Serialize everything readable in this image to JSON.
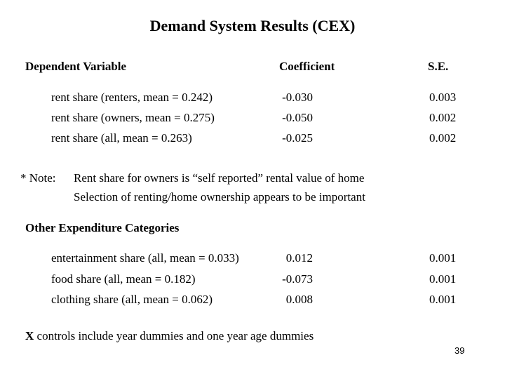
{
  "slide": {
    "title": "Demand System Results (CEX)",
    "page_number": "39"
  },
  "results_table": {
    "headers": {
      "dependent_variable": "Dependent Variable",
      "coefficient": "Coefficient",
      "se": "S.E."
    },
    "rows": [
      {
        "label": "rent share (renters, mean = 0.242)",
        "coefficient": "-0.030",
        "se": "0.003"
      },
      {
        "label": "rent share (owners, mean = 0.275)",
        "coefficient": "-0.050",
        "se": "0.002"
      },
      {
        "label": "rent share (all, mean = 0.263)",
        "coefficient": "-0.025",
        "se": "0.002"
      }
    ]
  },
  "note": {
    "prefix": "* Note:",
    "line1": "Rent share for owners is “self reported” rental value of home",
    "line2": "Selection of renting/home ownership appears to be important"
  },
  "other_categories": {
    "heading": "Other Expenditure Categories",
    "rows": [
      {
        "label": "entertainment share (all, mean = 0.033)",
        "coefficient": "0.012",
        "se": "0.001"
      },
      {
        "label": "food share (all, mean = 0.182)",
        "coefficient": "-0.073",
        "se": "0.001"
      },
      {
        "label": "clothing share (all, mean = 0.062)",
        "coefficient": "0.008",
        "se": "0.001"
      }
    ]
  },
  "footnote": {
    "bold_part": "X",
    "text_part": " controls include year dummies and one year age dummies"
  }
}
